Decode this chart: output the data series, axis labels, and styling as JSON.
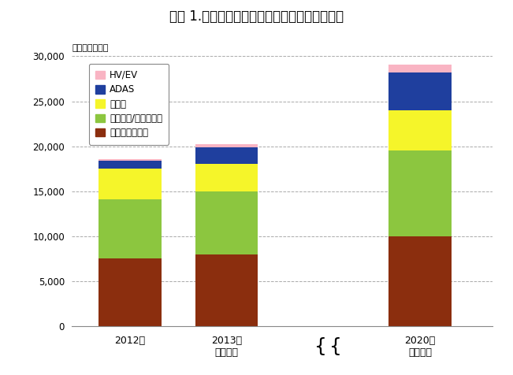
{
  "title": "図表 1.車載用センサの世界市場規模推移と予測",
  "unit_label": "（単位：億円）",
  "categories": [
    "2012年",
    "2013年\n（予測）",
    "2020年\n（予測）"
  ],
  "x_positions": [
    0,
    1,
    3
  ],
  "x_tick_labels": [
    "2012年",
    "2013年\n（予測）",
    "2020年\n（予測）"
  ],
  "series_order": [
    "パワートレイン",
    "シャーシ/セイフティ",
    "ボディ",
    "ADAS",
    "HV/EV"
  ],
  "series": {
    "パワートレイン": {
      "values": [
        7500,
        8000,
        10000
      ],
      "color": "#8B2E0E"
    },
    "シャーシ/セイフティ": {
      "values": [
        6600,
        7000,
        9500
      ],
      "color": "#8CC63F"
    },
    "ボディ": {
      "values": [
        3400,
        3000,
        4500
      ],
      "color": "#F5F52A"
    },
    "ADAS": {
      "values": [
        900,
        1900,
        4200
      ],
      "color": "#1F3F9E"
    },
    "HV/EV": {
      "values": [
        200,
        350,
        900
      ],
      "color": "#F9B4C3"
    }
  },
  "ylim": [
    0,
    30000
  ],
  "yticks": [
    0,
    5000,
    10000,
    15000,
    20000,
    25000,
    30000
  ],
  "bar_width": 0.65,
  "background_color": "#FFFFFF",
  "grid_color": "#AAAAAA",
  "legend_order": [
    "HV/EV",
    "ADAS",
    "ボディ",
    "シャーシ/セイフティ",
    "パワートレイン"
  ]
}
